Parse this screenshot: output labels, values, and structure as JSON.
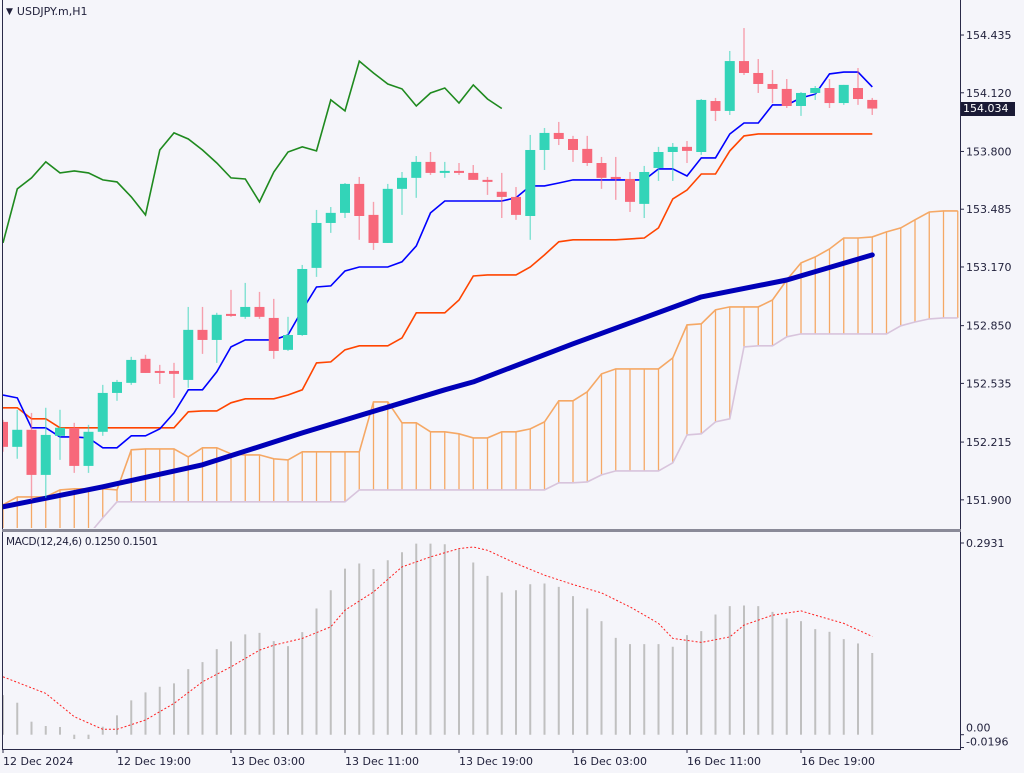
{
  "header": {
    "symbol_label": "USDJPY.m,H1",
    "menu_icon": "triangle-down-icon"
  },
  "price_axis": {
    "ticks": [
      "154.435",
      "154.120",
      "153.800",
      "153.485",
      "153.170",
      "152.850",
      "152.535",
      "152.215",
      "151.900"
    ],
    "current_price": "154.034"
  },
  "macd_panel": {
    "label": "MACD(12,24,6) 0.1250 0.1501",
    "axis_ticks": [
      "0.2931",
      "0.00",
      "-0.0196"
    ]
  },
  "colors": {
    "background": "#f5f5fa",
    "bull": "#33d4b8",
    "bear": "#f7687a",
    "tenkan": "#0000ff",
    "kijun": "#ff4500",
    "chikou": "#1f8a1f",
    "senkou_a": "#f5a865",
    "senkou_b": "#d8c4dc",
    "ma": "#0000b8",
    "macd_hist": "#c0c0c0",
    "macd_signal": "#ff2020",
    "axis": "#2a2a48",
    "price_box": "#1a1a35"
  },
  "chart_data": {
    "type": "candlestick",
    "title": "USDJPY.m,H1",
    "ylim": [
      151.79,
      154.626
    ],
    "grid": false,
    "time_ticks": [
      {
        "label": "12 Dec 2024",
        "bar": 0
      },
      {
        "label": "12 Dec 19:00",
        "bar": 8
      },
      {
        "label": "13 Dec 03:00",
        "bar": 16
      },
      {
        "label": "13 Dec 11:00",
        "bar": 24
      },
      {
        "label": "13 Dec 19:00",
        "bar": 32
      },
      {
        "label": "16 Dec 03:00",
        "bar": 40
      },
      {
        "label": "16 Dec 11:00",
        "bar": 48
      },
      {
        "label": "16 Dec 19:00",
        "bar": 56
      }
    ],
    "ohlc": [
      [
        152.325,
        152.336,
        152.162,
        152.189
      ],
      [
        152.189,
        152.391,
        152.124,
        152.282
      ],
      [
        152.282,
        152.374,
        151.9,
        152.036
      ],
      [
        152.036,
        152.402,
        151.911,
        152.254
      ],
      [
        152.249,
        152.391,
        152.118,
        152.293
      ],
      [
        152.293,
        152.32,
        152.047,
        152.085
      ],
      [
        152.085,
        152.309,
        152.047,
        152.271
      ],
      [
        152.271,
        152.527,
        152.249,
        152.483
      ],
      [
        152.483,
        152.554,
        152.44,
        152.543
      ],
      [
        152.538,
        152.68,
        152.527,
        152.663
      ],
      [
        152.669,
        152.691,
        152.592,
        152.592
      ],
      [
        152.603,
        152.636,
        152.532,
        152.592
      ],
      [
        152.603,
        152.647,
        152.456,
        152.587
      ],
      [
        152.554,
        152.952,
        152.511,
        152.827
      ],
      [
        152.827,
        152.952,
        152.696,
        152.772
      ],
      [
        152.772,
        152.92,
        152.647,
        152.909
      ],
      [
        152.914,
        153.045,
        152.898,
        152.903
      ],
      [
        152.898,
        153.083,
        152.887,
        152.952
      ],
      [
        152.952,
        153.034,
        152.887,
        152.898
      ],
      [
        152.892,
        152.996,
        152.669,
        152.712
      ],
      [
        152.718,
        152.898,
        152.712,
        152.799
      ],
      [
        152.799,
        153.181,
        152.794,
        153.159
      ],
      [
        153.165,
        153.481,
        153.116,
        153.41
      ],
      [
        153.41,
        153.497,
        153.356,
        153.465
      ],
      [
        153.465,
        153.628,
        153.437,
        153.623
      ],
      [
        153.623,
        153.661,
        153.318,
        153.448
      ],
      [
        153.454,
        153.525,
        153.263,
        153.301
      ],
      [
        153.301,
        153.623,
        153.301,
        153.596
      ],
      [
        153.596,
        153.688,
        153.454,
        153.656
      ],
      [
        153.656,
        153.775,
        153.547,
        153.743
      ],
      [
        153.743,
        153.797,
        153.672,
        153.683
      ],
      [
        153.683,
        153.743,
        153.656,
        153.694
      ],
      [
        153.694,
        153.737,
        153.672,
        153.683
      ],
      [
        153.683,
        153.726,
        153.645,
        153.645
      ],
      [
        153.645,
        153.661,
        153.563,
        153.634
      ],
      [
        153.58,
        153.683,
        153.437,
        153.552
      ],
      [
        153.552,
        153.606,
        153.427,
        153.454
      ],
      [
        153.448,
        153.89,
        153.318,
        153.808
      ],
      [
        153.808,
        153.928,
        153.699,
        153.901
      ],
      [
        153.901,
        153.961,
        153.835,
        153.868
      ],
      [
        153.868,
        153.885,
        153.743,
        153.808
      ],
      [
        153.814,
        153.885,
        153.721,
        153.737
      ],
      [
        153.737,
        153.77,
        153.596,
        153.656
      ],
      [
        153.661,
        153.77,
        153.536,
        153.65
      ],
      [
        153.65,
        153.688,
        153.47,
        153.525
      ],
      [
        153.514,
        153.721,
        153.437,
        153.688
      ],
      [
        153.71,
        153.825,
        153.639,
        153.797
      ],
      [
        153.797,
        153.846,
        153.639,
        153.825
      ],
      [
        153.825,
        153.857,
        153.737,
        153.803
      ],
      [
        153.797,
        154.086,
        153.781,
        154.081
      ],
      [
        154.075,
        154.092,
        153.966,
        154.021
      ],
      [
        154.021,
        154.348,
        153.999,
        154.293
      ],
      [
        154.293,
        154.473,
        154.217,
        154.228
      ],
      [
        154.228,
        154.304,
        154.119,
        154.168
      ],
      [
        154.168,
        154.244,
        154.064,
        154.141
      ],
      [
        154.141,
        154.195,
        154.037,
        154.048
      ],
      [
        154.048,
        154.124,
        153.994,
        154.119
      ],
      [
        154.119,
        154.157,
        154.081,
        154.146
      ],
      [
        154.146,
        154.195,
        154.037,
        154.064
      ],
      [
        154.064,
        154.163,
        154.054,
        154.163
      ],
      [
        154.146,
        154.255,
        154.054,
        154.086
      ],
      [
        154.081,
        154.092,
        153.999,
        154.034
      ]
    ],
    "ichimoku": {
      "tenkan": [
        152.472,
        152.456,
        152.293,
        152.293,
        152.243,
        152.243,
        152.238,
        152.184,
        152.184,
        152.249,
        152.249,
        152.287,
        152.374,
        152.5,
        152.5,
        152.598,
        152.734,
        152.772,
        152.772,
        152.772,
        152.799,
        152.936,
        153.061,
        153.067,
        153.148,
        153.17,
        153.17,
        153.17,
        153.198,
        153.285,
        153.465,
        153.53,
        153.53,
        153.53,
        153.53,
        153.53,
        153.547,
        153.612,
        153.612,
        153.628,
        153.645,
        153.645,
        153.645,
        153.645,
        153.645,
        153.645,
        153.705,
        153.705,
        153.666,
        153.765,
        153.765,
        153.895,
        153.955,
        153.955,
        154.054,
        154.054,
        154.092,
        154.113,
        154.223,
        154.233,
        154.233,
        154.152
      ],
      "kijun": [
        152.402,
        152.402,
        152.342,
        152.342,
        152.293,
        152.293,
        152.293,
        152.293,
        152.293,
        152.293,
        152.293,
        152.293,
        152.293,
        152.38,
        152.385,
        152.385,
        152.429,
        152.451,
        152.451,
        152.451,
        152.472,
        152.5,
        152.647,
        152.652,
        152.718,
        152.74,
        152.74,
        152.74,
        152.783,
        152.92,
        152.92,
        152.92,
        152.99,
        153.121,
        153.127,
        153.127,
        153.127,
        153.17,
        153.236,
        153.307,
        153.318,
        153.318,
        153.318,
        153.318,
        153.323,
        153.328,
        153.383,
        153.541,
        153.59,
        153.677,
        153.677,
        153.803,
        153.885,
        153.896,
        153.896,
        153.896,
        153.896,
        153.896,
        153.896,
        153.896,
        153.896,
        153.896
      ],
      "chikou_shift_bars": 26,
      "senkou_a": [
        151.873,
        151.916,
        151.916,
        151.916,
        151.954,
        151.96,
        151.96,
        151.96,
        151.954,
        152.173,
        152.178,
        152.178,
        152.178,
        152.134,
        152.184,
        152.184,
        152.151,
        152.145,
        152.145,
        152.124,
        152.118,
        152.162,
        152.162,
        152.162,
        152.162,
        152.162,
        152.434,
        152.434,
        152.32,
        152.32,
        152.271,
        152.271,
        152.26,
        152.238,
        152.238,
        152.271,
        152.271,
        152.287,
        152.325,
        152.44,
        152.44,
        152.489,
        152.587,
        152.614,
        152.614,
        152.614,
        152.614,
        152.674,
        152.854,
        152.86,
        152.936,
        152.952,
        152.952,
        152.952,
        152.99,
        153.099,
        153.192,
        153.225,
        153.268,
        153.328,
        153.328,
        153.334,
        153.361,
        153.383,
        153.427,
        153.47,
        153.476,
        153.476
      ],
      "senkou_b": [
        151.709,
        151.709,
        151.709,
        151.709,
        151.709,
        151.709,
        151.709,
        151.802,
        151.889,
        151.889,
        151.889,
        151.889,
        151.889,
        151.889,
        151.889,
        151.889,
        151.889,
        151.889,
        151.889,
        151.889,
        151.889,
        151.889,
        151.889,
        151.889,
        151.889,
        151.954,
        151.954,
        151.954,
        151.954,
        151.954,
        151.954,
        151.954,
        151.954,
        151.954,
        151.954,
        151.954,
        151.954,
        151.954,
        151.954,
        151.993,
        151.993,
        151.998,
        152.036,
        152.058,
        152.058,
        152.058,
        152.058,
        152.102,
        152.254,
        152.26,
        152.325,
        152.342,
        152.734,
        152.74,
        152.74,
        152.789,
        152.805,
        152.805,
        152.805,
        152.805,
        152.805,
        152.805,
        152.805,
        152.849,
        152.87,
        152.887,
        152.892,
        152.892
      ]
    },
    "moving_average": [
      [
        0,
        151.862
      ],
      [
        7,
        151.971
      ],
      [
        14,
        152.091
      ],
      [
        21,
        152.265
      ],
      [
        31,
        152.5
      ],
      [
        33,
        152.543
      ],
      [
        40,
        152.751
      ],
      [
        49,
        153.007
      ],
      [
        55,
        153.099
      ],
      [
        61,
        153.236
      ]
    ],
    "macd": {
      "ylim": [
        -0.0196,
        0.2931
      ],
      "histogram": [
        0.0606,
        0.0489,
        0.0199,
        0.0133,
        0.0118,
        -0.0066,
        -0.0066,
        0.0122,
        0.0296,
        0.0525,
        0.0647,
        0.0733,
        0.0785,
        0.1003,
        0.111,
        0.1308,
        0.1426,
        0.1533,
        0.1557,
        0.1431,
        0.1354,
        0.1568,
        0.193,
        0.2209,
        0.254,
        0.2617,
        0.2534,
        0.2667,
        0.2789,
        0.2922,
        0.2922,
        0.2911,
        0.2835,
        0.2632,
        0.2428,
        0.2174,
        0.2209,
        0.2301,
        0.2311,
        0.226,
        0.2118,
        0.193,
        0.1736,
        0.1481,
        0.1385,
        0.1385,
        0.1385,
        0.1344,
        0.1522,
        0.1583,
        0.1838,
        0.1965,
        0.1976,
        0.1965,
        0.1878,
        0.1777,
        0.1736,
        0.1614,
        0.1573,
        0.1461,
        0.1395,
        0.125
      ],
      "signal": [
        [
          0,
          0.0886
        ],
        [
          3,
          0.0632
        ],
        [
          5,
          0.0275
        ],
        [
          7,
          0.0082
        ],
        [
          8,
          0.0082
        ],
        [
          10,
          0.0224
        ],
        [
          12,
          0.0479
        ],
        [
          14,
          0.0809
        ],
        [
          16,
          0.1038
        ],
        [
          18,
          0.1293
        ],
        [
          19,
          0.1369
        ],
        [
          21,
          0.1472
        ],
        [
          23,
          0.1649
        ],
        [
          24,
          0.1904
        ],
        [
          26,
          0.2183
        ],
        [
          28,
          0.2565
        ],
        [
          30,
          0.2718
        ],
        [
          32,
          0.2846
        ],
        [
          33,
          0.287
        ],
        [
          34,
          0.282
        ],
        [
          36,
          0.2617
        ],
        [
          38,
          0.2438
        ],
        [
          40,
          0.2296
        ],
        [
          42,
          0.2168
        ],
        [
          44,
          0.1954
        ],
        [
          46,
          0.1701
        ],
        [
          47,
          0.1472
        ],
        [
          49,
          0.1411
        ],
        [
          51,
          0.1496
        ],
        [
          52,
          0.1675
        ],
        [
          54,
          0.1827
        ],
        [
          56,
          0.1893
        ],
        [
          57,
          0.1827
        ],
        [
          59,
          0.1701
        ],
        [
          61,
          0.1501
        ]
      ]
    }
  }
}
